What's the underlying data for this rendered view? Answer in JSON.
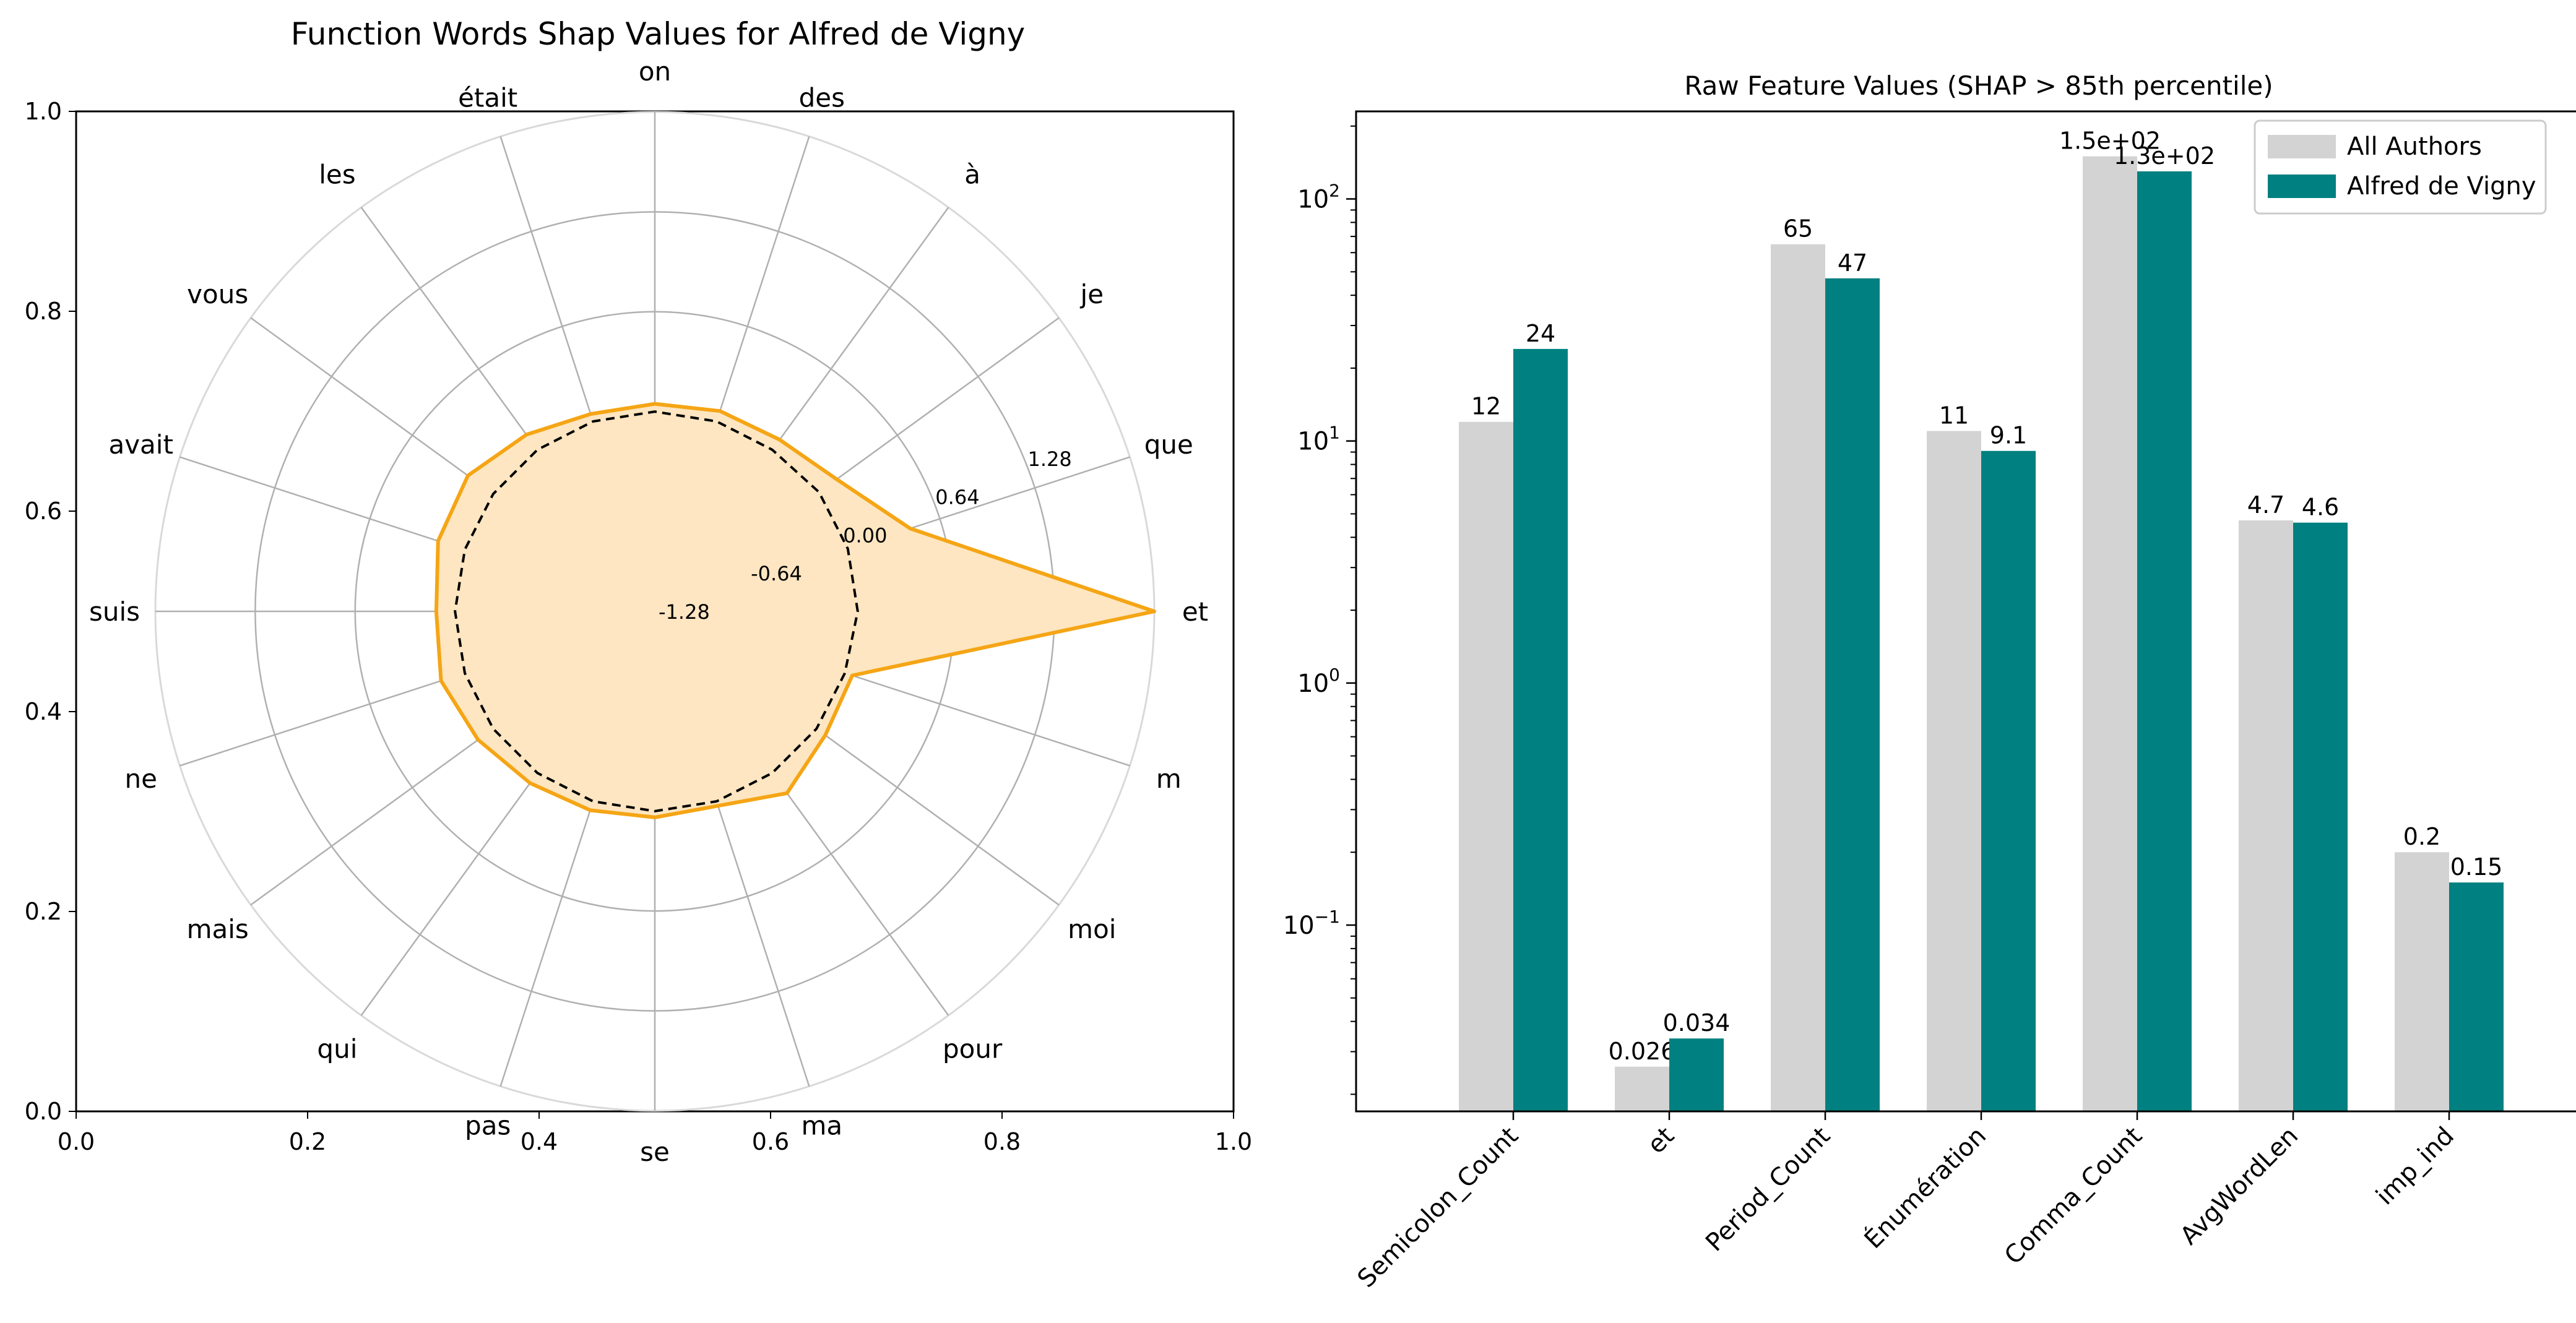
{
  "chart_data": [
    {
      "type": "radar",
      "title": "Function Words Shap Values for Alfred de Vigny",
      "axis_words": [
        "et",
        "que",
        "je",
        "à",
        "des",
        "on",
        "était",
        "les",
        "vous",
        "avait",
        "suis",
        "ne",
        "mais",
        "qui",
        "pas",
        "se",
        "ma",
        "pour",
        "moi",
        "m"
      ],
      "radial_ticks": [
        "-1.28",
        "-0.64",
        "0.00",
        "0.64",
        "1.28"
      ],
      "radial_range": [
        -1.28,
        1.92
      ],
      "frame_xticks": [
        "0.0",
        "0.2",
        "0.4",
        "0.6",
        "0.8",
        "1.0"
      ],
      "frame_yticks": [
        "0.0",
        "0.2",
        "0.4",
        "0.6",
        "0.8",
        "1.0"
      ],
      "colors": {
        "author_line": "#f5a515",
        "author_fill": "#fde6c1",
        "baseline_line": "#000000",
        "grid": "#b0b0b0"
      },
      "series": [
        {
          "values": [
            1.92,
            0.44,
            0.16,
            0.08,
            0.07,
            0.05,
            0.05,
            0.12,
            0.2,
            0.18,
            0.12,
            0.16,
            0.12,
            0.08,
            0.06,
            0.04,
            0.03,
            0.16,
            0.07,
            0.05
          ]
        },
        {
          "values": [
            0.02,
            0.02,
            0.02,
            0.0,
            0.0,
            0.0,
            0.0,
            0.0,
            0.0,
            0.0,
            0.0,
            0.0,
            0.0,
            0.0,
            0.0,
            0.0,
            0.0,
            0.0,
            0.0,
            0.0
          ]
        }
      ]
    },
    {
      "type": "bar",
      "title": "Raw Feature Values (SHAP > 85th percentile)",
      "yscale": "log",
      "ylim": [
        0.017,
        230
      ],
      "ytick_labels": [
        {
          "base": "10",
          "exp": "−1",
          "value": 0.1
        },
        {
          "base": "10",
          "exp": "0",
          "value": 1
        },
        {
          "base": "10",
          "exp": "1",
          "value": 10
        },
        {
          "base": "10",
          "exp": "2",
          "value": 100
        }
      ],
      "categories": [
        "Semicolon_Count",
        "et",
        "Period_Count",
        "Énumération",
        "Comma_Count",
        "AvgWordLen",
        "imp_ind"
      ],
      "legend": {
        "position": "top-right"
      },
      "series": [
        {
          "name": "All Authors",
          "color": "#d3d3d3",
          "values": [
            12,
            0.026,
            65,
            11,
            150,
            4.7,
            0.2
          ],
          "labels": [
            "12",
            "0.026",
            "65",
            "11",
            "1.5e+02",
            "4.7",
            "0.2"
          ]
        },
        {
          "name": "Alfred de Vigny",
          "color": "#008080",
          "values": [
            24,
            0.034,
            47,
            9.1,
            130,
            4.6,
            0.15
          ],
          "labels": [
            "24",
            "0.034",
            "47",
            "9.1",
            "1.3e+02",
            "4.6",
            "0.15"
          ]
        }
      ]
    }
  ]
}
